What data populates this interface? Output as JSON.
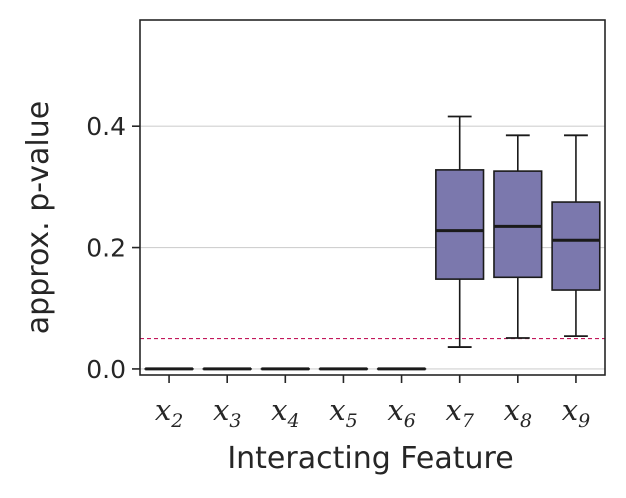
{
  "chart_data": {
    "type": "box",
    "xlabel": "Interacting Feature",
    "ylabel": "approx. p-value",
    "ylim": [
      -0.01,
      0.575
    ],
    "yticks": [
      0.0,
      0.2,
      0.4
    ],
    "ytick_labels": [
      "0.0",
      "0.2",
      "0.4"
    ],
    "grid": "horizontal",
    "reference_line": {
      "y": 0.05,
      "color": "#c2185b",
      "style": "dashed"
    },
    "box_color": "#7b78ad",
    "categories": [
      {
        "base": "x",
        "sub": "2"
      },
      {
        "base": "x",
        "sub": "3"
      },
      {
        "base": "x",
        "sub": "4"
      },
      {
        "base": "x",
        "sub": "5"
      },
      {
        "base": "x",
        "sub": "6"
      },
      {
        "base": "x",
        "sub": "7"
      },
      {
        "base": "x",
        "sub": "8"
      },
      {
        "base": "x",
        "sub": "9"
      }
    ],
    "boxes": [
      {
        "whisker_low": 0.0,
        "q1": 0.0,
        "median": 0.0,
        "q3": 0.0,
        "whisker_high": 0.0
      },
      {
        "whisker_low": 0.0,
        "q1": 0.0,
        "median": 0.0,
        "q3": 0.0,
        "whisker_high": 0.0
      },
      {
        "whisker_low": 0.0,
        "q1": 0.0,
        "median": 0.0,
        "q3": 0.0,
        "whisker_high": 0.0
      },
      {
        "whisker_low": 0.0,
        "q1": 0.0,
        "median": 0.0,
        "q3": 0.0,
        "whisker_high": 0.0
      },
      {
        "whisker_low": 0.0,
        "q1": 0.0,
        "median": 0.0,
        "q3": 0.0,
        "whisker_high": 0.0
      },
      {
        "whisker_low": 0.036,
        "q1": 0.148,
        "median": 0.228,
        "q3": 0.328,
        "whisker_high": 0.416
      },
      {
        "whisker_low": 0.051,
        "q1": 0.151,
        "median": 0.235,
        "q3": 0.326,
        "whisker_high": 0.385
      },
      {
        "whisker_low": 0.054,
        "q1": 0.13,
        "median": 0.212,
        "q3": 0.275,
        "whisker_high": 0.385
      }
    ]
  }
}
